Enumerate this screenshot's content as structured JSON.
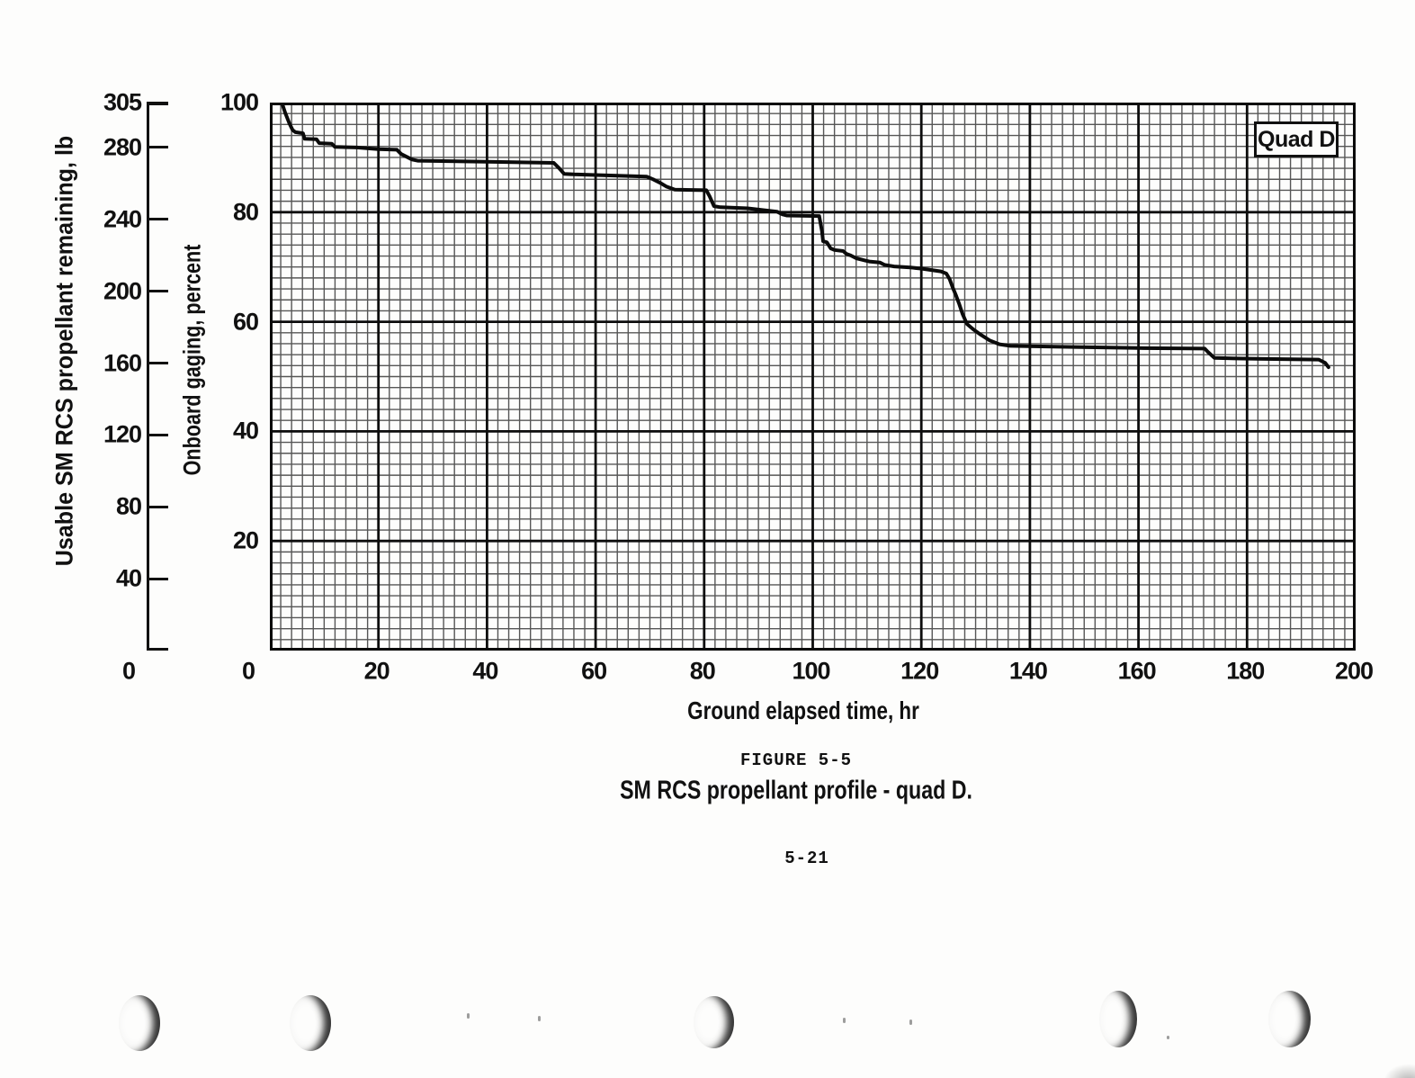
{
  "figure": {
    "label": "FIGURE 5-5",
    "caption": "SM RCS propellant profile - quad D.",
    "page_number": "5-21"
  },
  "chart_data": {
    "type": "line",
    "title": "SM RCS propellant profile - quad D.",
    "legend": "Quad D",
    "grid": {
      "minor_step": 2,
      "major_step": 20,
      "style": "graph-paper"
    },
    "x_axis": {
      "title": "Ground elapsed time, hr",
      "min": 0,
      "max": 200,
      "origin_label": "0",
      "ticks": [
        20,
        40,
        60,
        80,
        100,
        120,
        140,
        160,
        180,
        200
      ]
    },
    "pct_axis": {
      "title": "Onboard gaging, percent",
      "min": 0,
      "max": 100,
      "origin_label": "0",
      "ticks": [
        100,
        80,
        60,
        40,
        20
      ]
    },
    "lb_axis": {
      "title": "Usable SM RCS propellant remaining, lb",
      "min": 0,
      "max": 305,
      "zero_label": "0",
      "ticks": [
        305,
        280,
        240,
        200,
        160,
        120,
        80,
        40
      ]
    },
    "series": [
      {
        "name": "Quad D",
        "units": [
          "hr",
          "percent"
        ],
        "points": [
          [
            2.2,
            100
          ],
          [
            2.8,
            98.2
          ],
          [
            3.6,
            96.2
          ],
          [
            4.2,
            95.0
          ],
          [
            4.7,
            94.6
          ],
          [
            6.1,
            94.4
          ],
          [
            6.4,
            93.4
          ],
          [
            8.6,
            93.3
          ],
          [
            9.1,
            92.6
          ],
          [
            11.4,
            92.5
          ],
          [
            12.0,
            91.9
          ],
          [
            16.0,
            91.8
          ],
          [
            20.0,
            91.5
          ],
          [
            23.4,
            91.4
          ],
          [
            24.2,
            90.6
          ],
          [
            26.2,
            89.6
          ],
          [
            27.2,
            89.4
          ],
          [
            40.0,
            89.2
          ],
          [
            52.3,
            89.0
          ],
          [
            53.3,
            88.0
          ],
          [
            54.2,
            87.0
          ],
          [
            56.0,
            86.9
          ],
          [
            69.4,
            86.5
          ],
          [
            70.6,
            86.0
          ],
          [
            71.8,
            85.4
          ],
          [
            73.0,
            84.7
          ],
          [
            74.6,
            84.1
          ],
          [
            80.4,
            84.0
          ],
          [
            81.0,
            82.9
          ],
          [
            81.8,
            81.1
          ],
          [
            83.0,
            80.9
          ],
          [
            88.0,
            80.7
          ],
          [
            93.4,
            80.1
          ],
          [
            94.4,
            79.6
          ],
          [
            95.2,
            79.4
          ],
          [
            101.2,
            79.3
          ],
          [
            101.7,
            76.5
          ],
          [
            101.9,
            74.7
          ],
          [
            102.6,
            74.5
          ],
          [
            103.3,
            73.4
          ],
          [
            104.0,
            73.1
          ],
          [
            105.6,
            72.9
          ],
          [
            106.2,
            72.4
          ],
          [
            107.0,
            72.1
          ],
          [
            108.0,
            71.6
          ],
          [
            109.6,
            71.2
          ],
          [
            110.4,
            71.0
          ],
          [
            112.4,
            70.8
          ],
          [
            113.2,
            70.4
          ],
          [
            115.0,
            70.1
          ],
          [
            118.0,
            69.9
          ],
          [
            120.0,
            69.7
          ],
          [
            123.6,
            69.2
          ],
          [
            124.6,
            68.8
          ],
          [
            125.2,
            67.8
          ],
          [
            125.8,
            66.2
          ],
          [
            126.4,
            64.8
          ],
          [
            127.0,
            63.2
          ],
          [
            127.6,
            61.4
          ],
          [
            128.4,
            59.6
          ],
          [
            129.6,
            58.6
          ],
          [
            131.0,
            57.6
          ],
          [
            132.6,
            56.6
          ],
          [
            134.4,
            55.9
          ],
          [
            136.4,
            55.6
          ],
          [
            148.0,
            55.4
          ],
          [
            160.0,
            55.2
          ],
          [
            172.2,
            55.1
          ],
          [
            172.8,
            54.5
          ],
          [
            174.0,
            53.4
          ],
          [
            178.0,
            53.3
          ],
          [
            193.2,
            53.1
          ],
          [
            194.4,
            52.5
          ],
          [
            195.0,
            51.7
          ]
        ]
      }
    ]
  }
}
